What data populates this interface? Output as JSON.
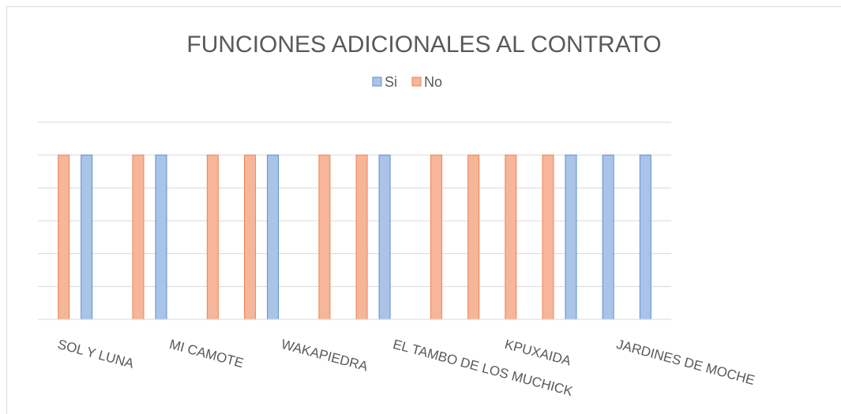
{
  "chart_data": {
    "type": "bar",
    "title": "FUNCIONES ADICIONALES AL CONTRATO",
    "categories": [
      "SOL Y LUNA",
      null,
      null,
      "MI CAMOTE",
      null,
      null,
      "WAKAPIEDRA",
      null,
      null,
      "EL TAMBO DE LOS MUCHICK",
      null,
      null,
      "KPUXAIDA",
      null,
      null,
      "JARDINES DE MOCHE"
    ],
    "series": [
      {
        "name": "Si",
        "color": "#a9c4e8",
        "values": [
          1,
          null,
          1,
          null,
          null,
          1,
          null,
          null,
          1,
          null,
          null,
          null,
          null,
          1,
          1,
          1
        ]
      },
      {
        "name": "No",
        "color": "#f7b599",
        "values": [
          1,
          null,
          1,
          null,
          1,
          1,
          null,
          1,
          1,
          null,
          1,
          1,
          1,
          1,
          null,
          null
        ]
      }
    ],
    "ylim": [
      0,
      1.2
    ],
    "yticks": [
      0,
      0.2,
      0.4,
      0.6,
      0.8,
      1,
      1.2
    ],
    "grid": true,
    "legend": "top"
  }
}
